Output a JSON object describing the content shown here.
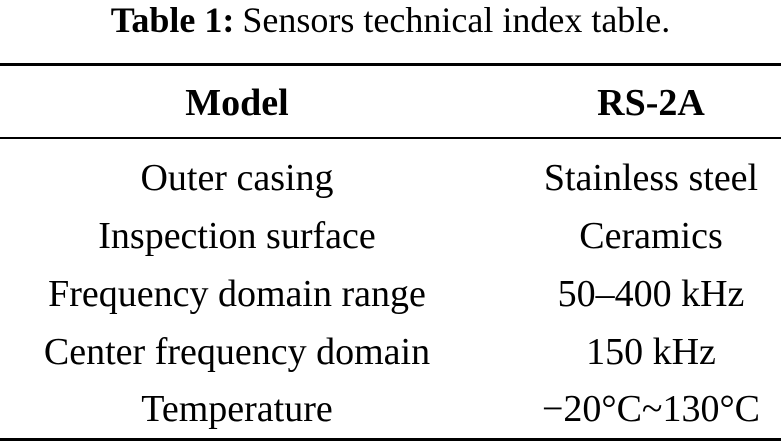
{
  "caption": {
    "label": "Table 1:",
    "text": "Sensors technical index table."
  },
  "table": {
    "header": [
      "Model",
      "RS-2A"
    ],
    "rows": [
      [
        "Outer casing",
        "Stainless steel"
      ],
      [
        "Inspection surface",
        "Ceramics"
      ],
      [
        "Frequency domain range",
        "50–400 kHz"
      ],
      [
        "Center frequency domain",
        "150 kHz"
      ],
      [
        "Temperature",
        "−20°C~130°C"
      ]
    ]
  }
}
